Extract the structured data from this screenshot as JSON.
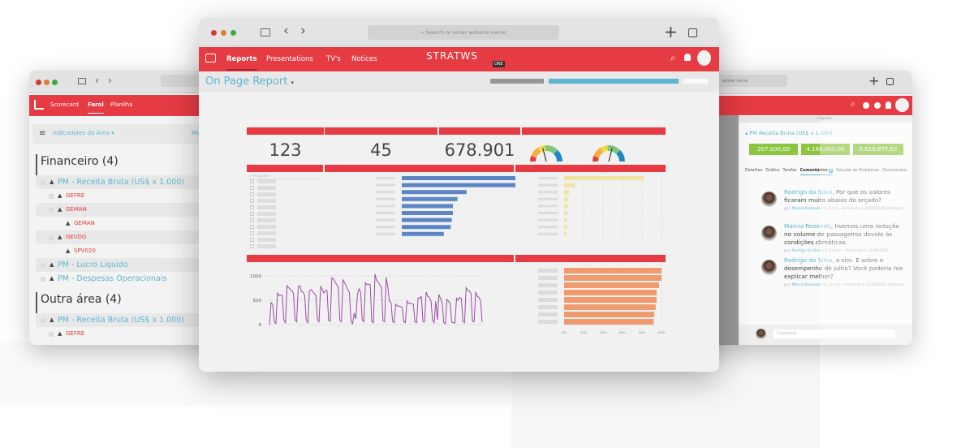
{
  "left_window": {
    "nav": [
      "Scorecard",
      "Farol",
      "Planilha"
    ],
    "active_nav": "Farol",
    "filter_label": "Indicadores da Área",
    "filter_col": "Me",
    "sections": [
      {
        "title": "Financeiro (4)",
        "rows": [
          {
            "label": "PM - Receita Bruta (US$ x 1.000)",
            "level": 0,
            "type": "link"
          },
          {
            "label": "GEFRE",
            "level": 1,
            "type": "sub"
          },
          {
            "label": "GEMAN",
            "level": 1,
            "type": "sub"
          },
          {
            "label": "GEMAN",
            "level": 2,
            "type": "sub"
          },
          {
            "label": "GEVDO",
            "level": 1,
            "type": "sub"
          },
          {
            "label": "SPV020",
            "level": 2,
            "type": "sub"
          },
          {
            "label": "PM - Lucro Liquido",
            "level": 0,
            "type": "link"
          },
          {
            "label": "PM - Despesas Operacionais",
            "level": 0,
            "type": "link"
          }
        ]
      },
      {
        "title": "Outra área (4)",
        "rows": [
          {
            "label": "PM - Receita Bruta (US$ x 1.000)",
            "level": 0,
            "type": "link"
          },
          {
            "label": "GEFRE",
            "level": 1,
            "type": "sub"
          }
        ]
      }
    ]
  },
  "main_window": {
    "address_placeholder": "Search or enter website name",
    "nav": [
      "Reports",
      "Presentations",
      "TV's",
      "Notices"
    ],
    "active_nav": "Reports",
    "logo_text": "STRATWS",
    "logo_badge": "ONE",
    "page_title": "On Page Report",
    "kpis": [
      "123",
      "45",
      "678.901"
    ],
    "gauges": [
      0.42,
      0.58
    ],
    "search_placeholder": "Pesquisar",
    "colors": {
      "brand": "#e63b43",
      "title": "#5ab6d1",
      "blue_bar": "#5b86c6",
      "yellow_bar": "#f0e4a0",
      "orange_bar": "#f09a6e",
      "line": "#9b4aa6"
    }
  },
  "chart_data": [
    {
      "type": "bar",
      "orientation": "horizontal",
      "values": [
        1,
        1,
        0.57,
        0.49,
        0.45,
        0.45,
        0.44,
        0.43,
        0.37
      ]
    },
    {
      "type": "bar",
      "orientation": "horizontal",
      "values": [
        0.82,
        0.11,
        0.05,
        0.04,
        0.04,
        0.035,
        0.03,
        0.03,
        0.025
      ],
      "grid": true
    },
    {
      "type": "line",
      "ylim": [
        0,
        1000
      ],
      "yticks": [
        "0",
        "500",
        "1000"
      ],
      "grid": true,
      "values": [
        0,
        450,
        420,
        60,
        20,
        650,
        600,
        610,
        600,
        90,
        40,
        800,
        760,
        720,
        700,
        640,
        100,
        60,
        780,
        800,
        680,
        670,
        600,
        80,
        40,
        700,
        720,
        680,
        640,
        600,
        100,
        60,
        780,
        730,
        650,
        700,
        700,
        90,
        70,
        960,
        940,
        880,
        820,
        770,
        90,
        60,
        920,
        860,
        790,
        720,
        660,
        70,
        20,
        240,
        120,
        620,
        730,
        670,
        100,
        60,
        860,
        820,
        830,
        820,
        60,
        40,
        1040,
        900,
        880,
        810,
        770,
        80,
        60,
        970,
        780,
        480,
        460,
        70,
        40,
        420,
        380,
        380,
        370,
        360,
        60,
        40,
        480,
        440,
        440,
        430,
        420,
        60,
        40,
        550,
        540,
        580,
        60,
        60,
        670,
        580,
        560,
        490,
        90,
        40,
        480,
        100,
        620,
        530,
        460,
        40,
        20,
        520,
        480,
        430,
        50,
        40,
        30,
        540,
        500,
        560,
        540,
        70,
        40,
        760,
        700,
        690,
        640,
        60,
        60,
        670,
        580,
        560,
        490,
        60
      ]
    },
    {
      "type": "bar",
      "orientation": "horizontal",
      "values": [
        100,
        100,
        97.5,
        95,
        95,
        94,
        92.5,
        92
      ],
      "xticks": [
        "0%",
        "20%",
        "40%",
        "60%",
        "80%",
        "100%"
      ]
    }
  ],
  "right_window": {
    "address_placeholder": "ebsite name",
    "month_nav": "‹ Agosto ›",
    "indicator": "PM Receita Bruta  (US$ x 1.000)",
    "values": [
      "207.000,00",
      "4.164.000,00",
      "5.618.877,63"
    ],
    "tabs": [
      "Detalhes",
      "Gráfico",
      "Tarefas",
      "Comentários",
      "Solução de Problemas",
      "Documentos"
    ],
    "active_tab": "Comentários",
    "comment_count": "1",
    "comments": [
      {
        "author": "Rodrigo da Silva",
        "text": ", Por que os valores ficaram muito abaixo do orçado?",
        "meta_by": "por",
        "meta_user": "Márcia Rezende",
        "meta_rest": "há 5 min - Referente à 20/08/2020 (editado)"
      },
      {
        "author": "Márcia Rezende",
        "text": ", tivemos uma redução no volume de passageiros devido às condições climáticas.",
        "meta_by": "por",
        "meta_user": "Rodrigo da Silva",
        "meta_rest": "há 11 min - Referente à 23/08/2020"
      },
      {
        "author": "Rodrigo da Silva",
        "text": ", a sim. E sobre o desempenho de julho? Você poderia me explicar melhor?",
        "meta_by": "por",
        "meta_user": "Márcia Rezende",
        "meta_rest": "há 12 min - referente à 21/08/2020 (editado)"
      }
    ],
    "comment_placeholder": "Comentar"
  }
}
